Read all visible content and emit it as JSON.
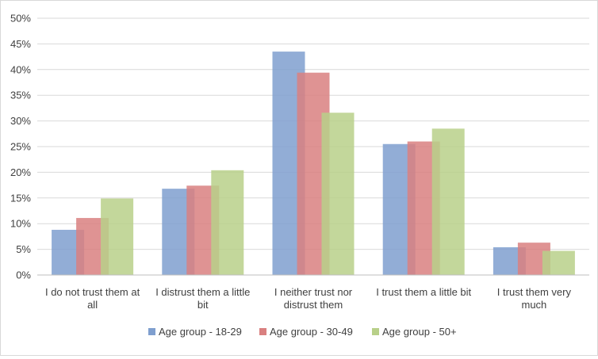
{
  "chart_data": {
    "type": "bar",
    "categories": [
      [
        "I do not trust them at",
        "all"
      ],
      [
        "I distrust them a little",
        "bit"
      ],
      [
        "I neither trust nor",
        "distrust them"
      ],
      [
        "I trust them a little bit"
      ],
      [
        "I trust them very",
        "much"
      ]
    ],
    "series": [
      {
        "name": "Age group - 18-29",
        "color": "#7f9fcf",
        "values": [
          8.8,
          16.8,
          43.5,
          25.5,
          5.4
        ]
      },
      {
        "name": "Age group - 30-49",
        "color": "#d98080",
        "values": [
          11.1,
          17.4,
          39.4,
          26.0,
          6.3
        ]
      },
      {
        "name": "Age group - 50+",
        "color": "#b8d089",
        "values": [
          14.9,
          20.4,
          31.6,
          28.5,
          4.7
        ]
      }
    ],
    "y_ticks": [
      "0%",
      "5%",
      "10%",
      "15%",
      "20%",
      "25%",
      "30%",
      "35%",
      "40%",
      "45%",
      "50%"
    ],
    "ylim": [
      0,
      50
    ],
    "grid": true,
    "legend_position": "bottom"
  }
}
